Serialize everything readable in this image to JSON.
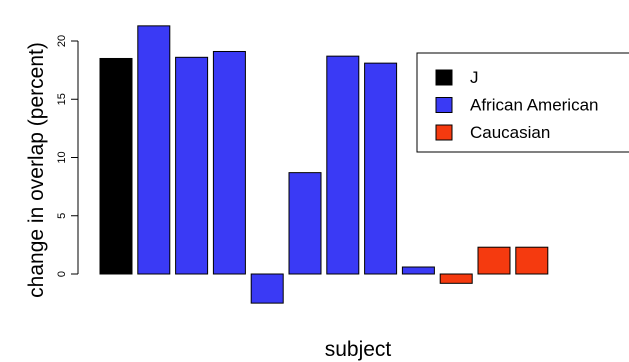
{
  "chart_data": {
    "type": "bar",
    "xlabel": "subject",
    "ylabel": "change in overlap (percent)",
    "ylim": [
      -2.5,
      21.3
    ],
    "yticks": [
      0,
      5,
      10,
      15,
      20
    ],
    "grid": false,
    "legend_position": "top-right",
    "legend": [
      {
        "label": "J",
        "color": "#000000"
      },
      {
        "label": "African American",
        "color": "#3a3af5"
      },
      {
        "label": "Caucasian",
        "color": "#f53a0f"
      }
    ],
    "bars": [
      {
        "group": "J",
        "value": 18.5
      },
      {
        "group": "African American",
        "value": 21.3
      },
      {
        "group": "African American",
        "value": 18.6
      },
      {
        "group": "African American",
        "value": 19.1
      },
      {
        "group": "African American",
        "value": -2.5
      },
      {
        "group": "African American",
        "value": 8.7
      },
      {
        "group": "African American",
        "value": 18.7
      },
      {
        "group": "African American",
        "value": 18.1
      },
      {
        "group": "African American",
        "value": 0.6
      },
      {
        "group": "Caucasian",
        "value": -0.8
      },
      {
        "group": "Caucasian",
        "value": 2.3
      },
      {
        "group": "Caucasian",
        "value": 2.3
      }
    ]
  }
}
